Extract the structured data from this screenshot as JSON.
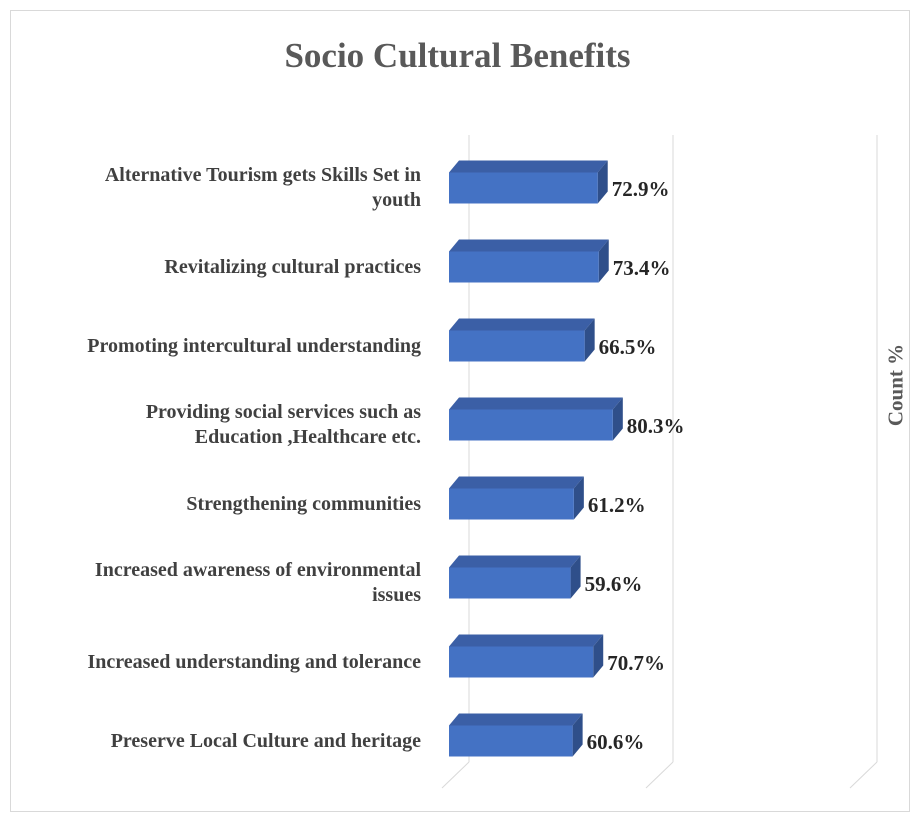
{
  "chart_data": {
    "type": "bar",
    "orientation": "horizontal",
    "title": "Socio Cultural Benefits",
    "ylabel": "Count %",
    "categories": [
      "Alternative Tourism gets Skills Set in youth",
      "Revitalizing cultural practices",
      "Promoting intercultural understanding",
      "Providing social services such as Education ,Healthcare etc.",
      "Strengthening communities",
      "Increased awareness of environmental issues",
      "Increased understanding and tolerance",
      "Preserve Local Culture and heritage"
    ],
    "category_lines": [
      [
        "Alternative Tourism gets Skills Set in",
        "youth"
      ],
      [
        "Revitalizing cultural practices"
      ],
      [
        "Promoting intercultural understanding"
      ],
      [
        "Providing social services such as",
        "Education ,Healthcare etc."
      ],
      [
        "Strengthening communities"
      ],
      [
        "Increased awareness of environmental",
        "issues"
      ],
      [
        "Increased understanding and tolerance"
      ],
      [
        "Preserve Local Culture and heritage"
      ]
    ],
    "values": [
      72.9,
      73.4,
      66.5,
      80.3,
      61.2,
      59.6,
      70.7,
      60.6
    ],
    "value_labels": [
      "72.9%",
      "73.4%",
      "66.5%",
      "80.3%",
      "61.2%",
      "59.6%",
      "70.7%",
      "60.6%"
    ],
    "xlim": [
      0,
      200
    ],
    "grid": true,
    "bar_color": "#4472c4",
    "bar_top_color": "#3b5fa6",
    "bar_side_color": "#2f4f8a"
  }
}
